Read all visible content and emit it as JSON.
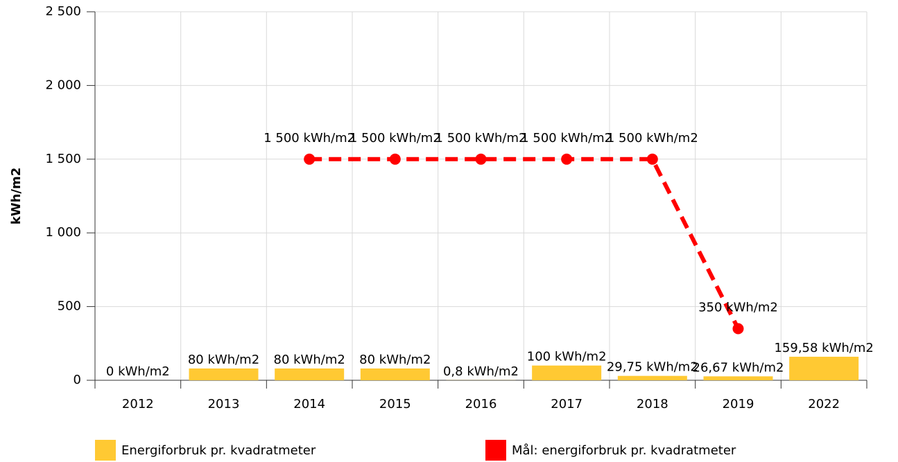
{
  "chart_data": {
    "type": "bar",
    "y_label": "kWh/m2",
    "categories": [
      "2012",
      "2013",
      "2014",
      "2015",
      "2016",
      "2017",
      "2018",
      "2019",
      "2022"
    ],
    "series": [
      {
        "name": "Energiforbruk pr. kvadratmeter",
        "type": "bar",
        "color": "#ffc933",
        "values": [
          0,
          80,
          80,
          80,
          0.8,
          100,
          29.75,
          26.67,
          159.58
        ],
        "value_labels": [
          "0 kWh/m2",
          "80 kWh/m2",
          "80 kWh/m2",
          "80 kWh/m2",
          "0,8 kWh/m2",
          "100 kWh/m2",
          "29,75 kWh/m2",
          "26,67 kWh/m2",
          "159,58 kWh/m2"
        ]
      },
      {
        "name": "Mål: energiforbruk pr. kvadratmeter",
        "type": "line",
        "color": "#ff0000",
        "values": [
          null,
          null,
          1500,
          1500,
          1500,
          1500,
          1500,
          350,
          null
        ],
        "value_labels": [
          null,
          null,
          "1 500 kWh/m2",
          "1 500 kWh/m2",
          "1 500 kWh/m2",
          "1 500 kWh/m2",
          "1 500 kWh/m2",
          "350 kWh/m2",
          null
        ]
      }
    ],
    "ylim": [
      0,
      2500
    ],
    "yticks": [
      0,
      500,
      {
        "value": 1000,
        "label": "1 000"
      },
      {
        "value": 1500,
        "label": "1 500"
      },
      {
        "value": 2000,
        "label": "2 000"
      },
      {
        "value": 2500,
        "label": "2 500"
      }
    ],
    "grid": true
  }
}
